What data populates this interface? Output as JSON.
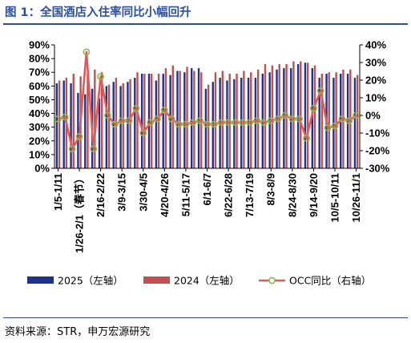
{
  "figure": {
    "title": "图 1：全国酒店入住率同比小幅回升",
    "source": "资料来源：STR，申万宏源研究"
  },
  "colors": {
    "s2025": "#1f3289",
    "s2024": "#c2504f",
    "occ_line": "#e05a5a",
    "occ_marker": "#8cb84c"
  },
  "chart_data": {
    "type": "bar",
    "title": "全国酒店入住率同比小幅回升",
    "x_tick_labels": [
      "1/5-1/11",
      "1/26-2/1（春节）",
      "2/16-2/22",
      "3/9-3/15",
      "3/30-4/5",
      "4/20-4/26",
      "5/11-5/17",
      "6/1-6/7",
      "6/22-6/28",
      "7/13-7/19",
      "8/3-8/9",
      "8/24-8/30",
      "9/14-9/20",
      "10/5-10/11",
      "10/26-11/1"
    ],
    "n_weeks": 43,
    "y_left": {
      "min": 0,
      "max": 0.9,
      "step": 0.1,
      "format": "percent"
    },
    "y_right": {
      "min": -0.3,
      "max": 0.4,
      "step": 0.1,
      "format": "percent"
    },
    "legend_position": "bottom",
    "grid": false,
    "series": [
      {
        "name": "2025（左轴）",
        "type": "bar",
        "axis": "left",
        "values": [
          0.62,
          0.64,
          0.62,
          0.55,
          0.54,
          0.58,
          0.51,
          0.6,
          0.63,
          0.6,
          0.63,
          0.66,
          0.69,
          0.69,
          0.64,
          0.69,
          0.68,
          0.71,
          0.7,
          0.73,
          0.73,
          0.58,
          0.63,
          0.66,
          0.64,
          0.65,
          0.66,
          0.66,
          0.66,
          0.69,
          0.7,
          0.72,
          0.73,
          0.73,
          0.76,
          0.77,
          0.73,
          0.66,
          0.69,
          0.66,
          0.69,
          0.69,
          0.66
        ]
      },
      {
        "name": "2024（左轴）",
        "type": "bar",
        "axis": "left",
        "values": [
          0.64,
          0.66,
          0.69,
          0.67,
          0.69,
          0.72,
          0.7,
          0.61,
          0.66,
          0.62,
          0.65,
          0.7,
          0.69,
          0.69,
          0.69,
          0.73,
          0.75,
          0.71,
          0.74,
          0.71,
          0.7,
          0.61,
          0.7,
          0.71,
          0.69,
          0.69,
          0.71,
          0.7,
          0.72,
          0.76,
          0.75,
          0.76,
          0.76,
          0.78,
          0.78,
          0.77,
          0.75,
          0.69,
          0.7,
          0.7,
          0.72,
          0.72,
          0.68
        ]
      },
      {
        "name": "OCC同比（右轴）",
        "type": "line",
        "axis": "right",
        "values": [
          -0.02,
          -0.01,
          -0.19,
          -0.12,
          0.36,
          -0.19,
          0.22,
          0.0,
          -0.05,
          -0.03,
          -0.03,
          0.04,
          -0.1,
          -0.04,
          -0.02,
          0.03,
          -0.02,
          -0.05,
          -0.05,
          -0.04,
          -0.03,
          -0.05,
          -0.05,
          -0.04,
          -0.04,
          -0.04,
          -0.04,
          -0.04,
          -0.03,
          -0.04,
          -0.03,
          -0.02,
          0.0,
          -0.02,
          -0.02,
          -0.13,
          0.04,
          0.14,
          -0.07,
          -0.06,
          -0.02,
          -0.03,
          0.0
        ]
      }
    ]
  }
}
